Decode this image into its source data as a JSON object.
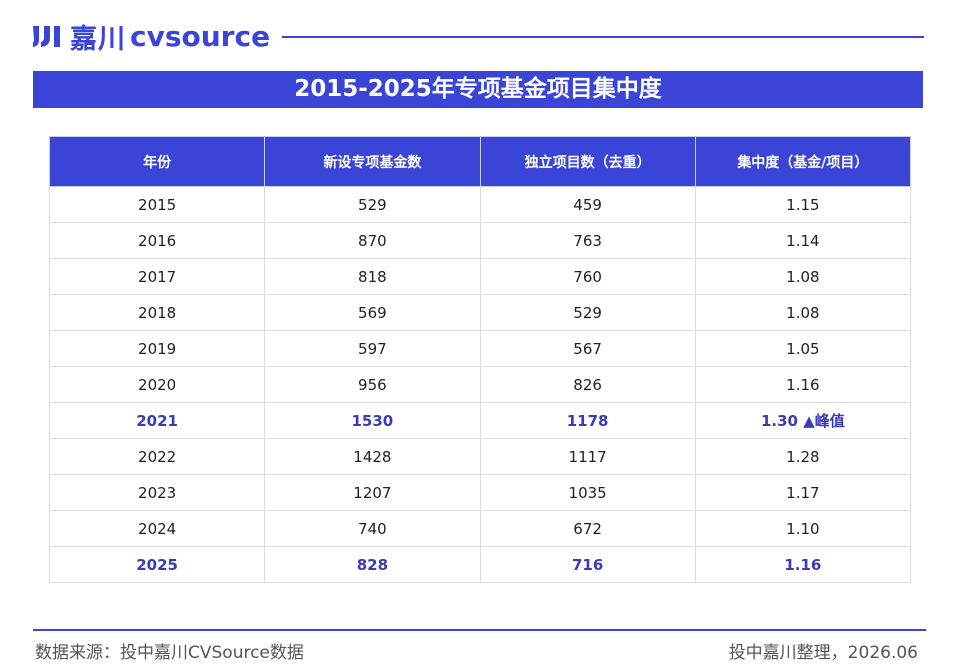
{
  "header": {
    "logo_cn": "嘉川",
    "logo_en": "cvsource"
  },
  "title": "2015-2025年专项基金项目集中度",
  "table": {
    "columns": [
      "年份",
      "新设专项基金数",
      "独立项目数（去重）",
      "集中度（基金/项目）"
    ],
    "rows": [
      [
        "2015",
        "529",
        "459",
        "1.15"
      ],
      [
        "2016",
        "870",
        "763",
        "1.14"
      ],
      [
        "2017",
        "818",
        "760",
        "1.08"
      ],
      [
        "2018",
        "569",
        "529",
        "1.08"
      ],
      [
        "2019",
        "597",
        "567",
        "1.05"
      ],
      [
        "2020",
        "956",
        "826",
        "1.16"
      ],
      [
        "2021",
        "1530",
        "1178",
        "1.30 ▲峰值"
      ],
      [
        "2022",
        "1428",
        "1117",
        "1.28"
      ],
      [
        "2023",
        "1207",
        "1035",
        "1.17"
      ],
      [
        "2024",
        "740",
        "672",
        "1.10"
      ],
      [
        "2025",
        "828",
        "716",
        "1.16"
      ]
    ]
  },
  "footer": {
    "source": "数据来源：投中嘉川CVSource数据",
    "note": "投中嘉川整理，2026.06"
  }
}
